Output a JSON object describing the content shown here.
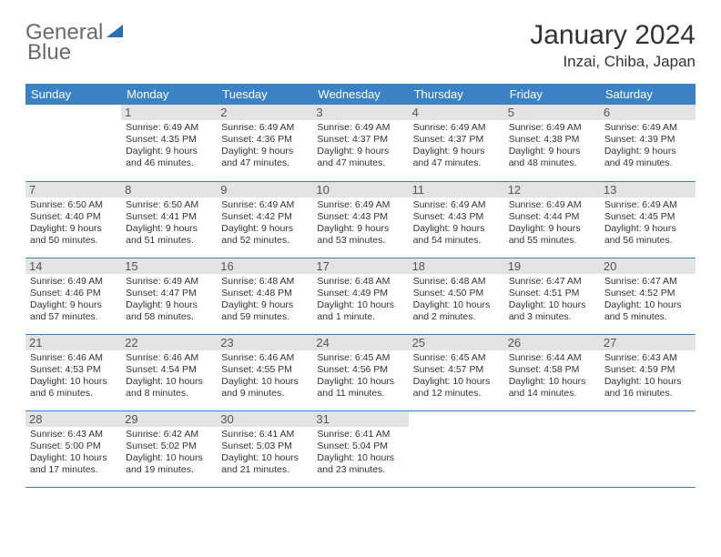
{
  "logo": {
    "text_a": "General",
    "text_b": "Blue"
  },
  "title": "January 2024",
  "location": "Inzai, Chiba, Japan",
  "colors": {
    "header_bg": "#3b82c4",
    "header_text": "#ffffff",
    "daynum_bg": "#e3e3e3",
    "border": "#3b82c4",
    "body_text": "#333333",
    "logo_gray": "#6a6a6a",
    "logo_blue": "#2b6fb0"
  },
  "day_headers": [
    "Sunday",
    "Monday",
    "Tuesday",
    "Wednesday",
    "Thursday",
    "Friday",
    "Saturday"
  ],
  "weeks": [
    [
      {
        "n": "",
        "lines": [
          "",
          "",
          "",
          ""
        ]
      },
      {
        "n": "1",
        "lines": [
          "Sunrise: 6:49 AM",
          "Sunset: 4:35 PM",
          "Daylight: 9 hours",
          "and 46 minutes."
        ]
      },
      {
        "n": "2",
        "lines": [
          "Sunrise: 6:49 AM",
          "Sunset: 4:36 PM",
          "Daylight: 9 hours",
          "and 47 minutes."
        ]
      },
      {
        "n": "3",
        "lines": [
          "Sunrise: 6:49 AM",
          "Sunset: 4:37 PM",
          "Daylight: 9 hours",
          "and 47 minutes."
        ]
      },
      {
        "n": "4",
        "lines": [
          "Sunrise: 6:49 AM",
          "Sunset: 4:37 PM",
          "Daylight: 9 hours",
          "and 47 minutes."
        ]
      },
      {
        "n": "5",
        "lines": [
          "Sunrise: 6:49 AM",
          "Sunset: 4:38 PM",
          "Daylight: 9 hours",
          "and 48 minutes."
        ]
      },
      {
        "n": "6",
        "lines": [
          "Sunrise: 6:49 AM",
          "Sunset: 4:39 PM",
          "Daylight: 9 hours",
          "and 49 minutes."
        ]
      }
    ],
    [
      {
        "n": "7",
        "lines": [
          "Sunrise: 6:50 AM",
          "Sunset: 4:40 PM",
          "Daylight: 9 hours",
          "and 50 minutes."
        ]
      },
      {
        "n": "8",
        "lines": [
          "Sunrise: 6:50 AM",
          "Sunset: 4:41 PM",
          "Daylight: 9 hours",
          "and 51 minutes."
        ]
      },
      {
        "n": "9",
        "lines": [
          "Sunrise: 6:49 AM",
          "Sunset: 4:42 PM",
          "Daylight: 9 hours",
          "and 52 minutes."
        ]
      },
      {
        "n": "10",
        "lines": [
          "Sunrise: 6:49 AM",
          "Sunset: 4:43 PM",
          "Daylight: 9 hours",
          "and 53 minutes."
        ]
      },
      {
        "n": "11",
        "lines": [
          "Sunrise: 6:49 AM",
          "Sunset: 4:43 PM",
          "Daylight: 9 hours",
          "and 54 minutes."
        ]
      },
      {
        "n": "12",
        "lines": [
          "Sunrise: 6:49 AM",
          "Sunset: 4:44 PM",
          "Daylight: 9 hours",
          "and 55 minutes."
        ]
      },
      {
        "n": "13",
        "lines": [
          "Sunrise: 6:49 AM",
          "Sunset: 4:45 PM",
          "Daylight: 9 hours",
          "and 56 minutes."
        ]
      }
    ],
    [
      {
        "n": "14",
        "lines": [
          "Sunrise: 6:49 AM",
          "Sunset: 4:46 PM",
          "Daylight: 9 hours",
          "and 57 minutes."
        ]
      },
      {
        "n": "15",
        "lines": [
          "Sunrise: 6:49 AM",
          "Sunset: 4:47 PM",
          "Daylight: 9 hours",
          "and 58 minutes."
        ]
      },
      {
        "n": "16",
        "lines": [
          "Sunrise: 6:48 AM",
          "Sunset: 4:48 PM",
          "Daylight: 9 hours",
          "and 59 minutes."
        ]
      },
      {
        "n": "17",
        "lines": [
          "Sunrise: 6:48 AM",
          "Sunset: 4:49 PM",
          "Daylight: 10 hours",
          "and 1 minute."
        ]
      },
      {
        "n": "18",
        "lines": [
          "Sunrise: 6:48 AM",
          "Sunset: 4:50 PM",
          "Daylight: 10 hours",
          "and 2 minutes."
        ]
      },
      {
        "n": "19",
        "lines": [
          "Sunrise: 6:47 AM",
          "Sunset: 4:51 PM",
          "Daylight: 10 hours",
          "and 3 minutes."
        ]
      },
      {
        "n": "20",
        "lines": [
          "Sunrise: 6:47 AM",
          "Sunset: 4:52 PM",
          "Daylight: 10 hours",
          "and 5 minutes."
        ]
      }
    ],
    [
      {
        "n": "21",
        "lines": [
          "Sunrise: 6:46 AM",
          "Sunset: 4:53 PM",
          "Daylight: 10 hours",
          "and 6 minutes."
        ]
      },
      {
        "n": "22",
        "lines": [
          "Sunrise: 6:46 AM",
          "Sunset: 4:54 PM",
          "Daylight: 10 hours",
          "and 8 minutes."
        ]
      },
      {
        "n": "23",
        "lines": [
          "Sunrise: 6:46 AM",
          "Sunset: 4:55 PM",
          "Daylight: 10 hours",
          "and 9 minutes."
        ]
      },
      {
        "n": "24",
        "lines": [
          "Sunrise: 6:45 AM",
          "Sunset: 4:56 PM",
          "Daylight: 10 hours",
          "and 11 minutes."
        ]
      },
      {
        "n": "25",
        "lines": [
          "Sunrise: 6:45 AM",
          "Sunset: 4:57 PM",
          "Daylight: 10 hours",
          "and 12 minutes."
        ]
      },
      {
        "n": "26",
        "lines": [
          "Sunrise: 6:44 AM",
          "Sunset: 4:58 PM",
          "Daylight: 10 hours",
          "and 14 minutes."
        ]
      },
      {
        "n": "27",
        "lines": [
          "Sunrise: 6:43 AM",
          "Sunset: 4:59 PM",
          "Daylight: 10 hours",
          "and 16 minutes."
        ]
      }
    ],
    [
      {
        "n": "28",
        "lines": [
          "Sunrise: 6:43 AM",
          "Sunset: 5:00 PM",
          "Daylight: 10 hours",
          "and 17 minutes."
        ]
      },
      {
        "n": "29",
        "lines": [
          "Sunrise: 6:42 AM",
          "Sunset: 5:02 PM",
          "Daylight: 10 hours",
          "and 19 minutes."
        ]
      },
      {
        "n": "30",
        "lines": [
          "Sunrise: 6:41 AM",
          "Sunset: 5:03 PM",
          "Daylight: 10 hours",
          "and 21 minutes."
        ]
      },
      {
        "n": "31",
        "lines": [
          "Sunrise: 6:41 AM",
          "Sunset: 5:04 PM",
          "Daylight: 10 hours",
          "and 23 minutes."
        ]
      },
      {
        "n": "",
        "lines": [
          "",
          "",
          "",
          ""
        ]
      },
      {
        "n": "",
        "lines": [
          "",
          "",
          "",
          ""
        ]
      },
      {
        "n": "",
        "lines": [
          "",
          "",
          "",
          ""
        ]
      }
    ]
  ]
}
